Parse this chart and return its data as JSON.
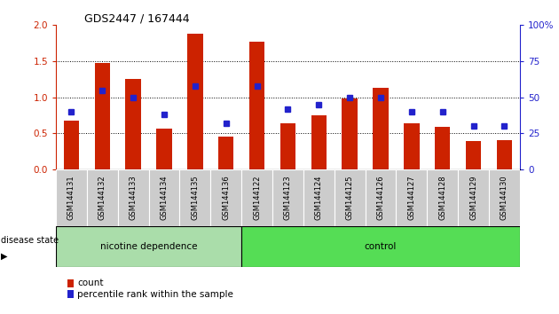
{
  "title": "GDS2447 / 167444",
  "samples": [
    "GSM144131",
    "GSM144132",
    "GSM144133",
    "GSM144134",
    "GSM144135",
    "GSM144136",
    "GSM144122",
    "GSM144123",
    "GSM144124",
    "GSM144125",
    "GSM144126",
    "GSM144127",
    "GSM144128",
    "GSM144129",
    "GSM144130"
  ],
  "bar_heights": [
    0.68,
    1.47,
    1.26,
    0.57,
    1.88,
    0.46,
    1.77,
    0.64,
    0.75,
    0.99,
    1.13,
    0.64,
    0.59,
    0.4,
    0.41
  ],
  "percentile_ranks": [
    40,
    55,
    50,
    38,
    58,
    32,
    58,
    42,
    45,
    50,
    50,
    40,
    40,
    30,
    30
  ],
  "bar_color": "#cc2200",
  "dot_color": "#2222cc",
  "ylim_left": [
    0,
    2
  ],
  "ylim_right": [
    0,
    100
  ],
  "yticks_left": [
    0,
    0.5,
    1.0,
    1.5,
    2.0
  ],
  "yticks_right": [
    0,
    25,
    50,
    75,
    100
  ],
  "group1_label": "nicotine dependence",
  "group2_label": "control",
  "group1_count": 6,
  "group2_count": 9,
  "disease_state_label": "disease state",
  "legend_bar_label": "count",
  "legend_dot_label": "percentile rank within the sample",
  "group1_color": "#aaddaa",
  "group2_color": "#55dd55",
  "xlabel_color": "#cc2200",
  "ylabel_right_color": "#2222cc",
  "tick_area_color": "#cccccc",
  "background_color": "#ffffff"
}
